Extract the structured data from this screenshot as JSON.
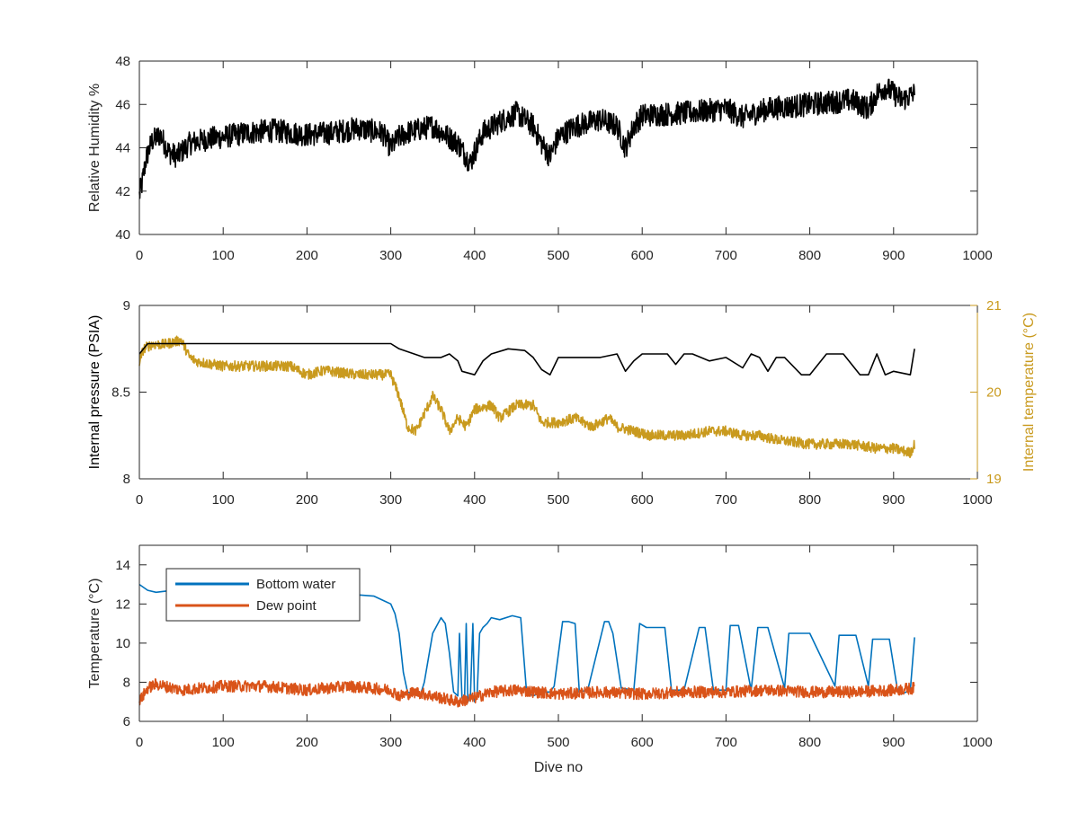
{
  "figure": {
    "background": "#ffffff"
  },
  "chart_data": [
    {
      "type": "line",
      "panel": "top",
      "ylabel": "Relative Humidity %",
      "xlim": [
        0,
        1000
      ],
      "ylim": [
        40,
        48
      ],
      "xticks": [
        0,
        100,
        200,
        300,
        400,
        500,
        600,
        700,
        800,
        900,
        1000
      ],
      "yticks": [
        40,
        42,
        44,
        46,
        48
      ],
      "grid": false,
      "series": [
        {
          "color": "#000000",
          "noise": 0.55,
          "x": [
            0,
            3,
            8,
            15,
            25,
            35,
            45,
            60,
            80,
            100,
            130,
            160,
            200,
            230,
            260,
            290,
            300,
            310,
            320,
            350,
            380,
            395,
            400,
            410,
            430,
            450,
            470,
            480,
            490,
            500,
            520,
            550,
            570,
            580,
            590,
            600,
            650,
            700,
            720,
            750,
            800,
            850,
            870,
            880,
            890,
            900,
            910,
            925
          ],
          "y": [
            41.8,
            42.3,
            43.5,
            44.3,
            44.6,
            43.8,
            43.6,
            44.2,
            44.4,
            44.5,
            44.7,
            44.8,
            44.6,
            44.7,
            44.9,
            44.7,
            44.0,
            44.5,
            44.7,
            45.0,
            44.2,
            43.3,
            43.8,
            44.7,
            45.2,
            45.6,
            45.0,
            44.2,
            43.6,
            44.5,
            45.0,
            45.3,
            45.0,
            44.0,
            45.0,
            45.5,
            45.6,
            45.8,
            45.4,
            45.8,
            46.0,
            46.2,
            45.8,
            46.5,
            46.8,
            46.5,
            46.2,
            46.5
          ]
        }
      ]
    },
    {
      "type": "line",
      "panel": "middle",
      "ylabel": "Internal pressure (PSIA)",
      "y2label": "Internal temperature (°C)",
      "xlim": [
        0,
        1000
      ],
      "ylim": [
        8,
        9
      ],
      "y2lim": [
        19,
        21
      ],
      "xticks": [
        0,
        100,
        200,
        300,
        400,
        500,
        600,
        700,
        800,
        900,
        1000
      ],
      "yticks": [
        8,
        8.5,
        9
      ],
      "yticklabels": [
        "8",
        "8.5",
        "9"
      ],
      "y2ticks": [
        19,
        20,
        21
      ],
      "grid": false,
      "series": [
        {
          "axis": "left",
          "color": "#000000",
          "x": [
            0,
            10,
            300,
            310,
            340,
            360,
            370,
            380,
            385,
            400,
            410,
            420,
            440,
            460,
            470,
            480,
            490,
            500,
            550,
            570,
            580,
            590,
            600,
            630,
            640,
            650,
            660,
            680,
            700,
            720,
            730,
            740,
            750,
            760,
            770,
            790,
            800,
            820,
            840,
            860,
            870,
            880,
            890,
            900,
            920,
            925
          ],
          "y": [
            8.72,
            8.78,
            8.78,
            8.75,
            8.7,
            8.7,
            8.72,
            8.68,
            8.62,
            8.6,
            8.68,
            8.72,
            8.75,
            8.74,
            8.7,
            8.63,
            8.6,
            8.7,
            8.7,
            8.72,
            8.62,
            8.68,
            8.72,
            8.72,
            8.66,
            8.72,
            8.72,
            8.68,
            8.7,
            8.64,
            8.72,
            8.7,
            8.62,
            8.7,
            8.7,
            8.6,
            8.6,
            8.72,
            8.72,
            8.6,
            8.6,
            8.72,
            8.6,
            8.62,
            8.6,
            8.75
          ]
        },
        {
          "axis": "right",
          "color": "#C99A1E",
          "noise": 0.06,
          "x": [
            0,
            5,
            15,
            30,
            50,
            60,
            70,
            100,
            150,
            180,
            200,
            220,
            260,
            300,
            310,
            320,
            330,
            340,
            350,
            360,
            370,
            380,
            390,
            400,
            420,
            430,
            450,
            470,
            480,
            500,
            520,
            540,
            560,
            570,
            590,
            610,
            620,
            650,
            680,
            700,
            720,
            740,
            760,
            800,
            850,
            880,
            900,
            920,
            925
          ],
          "y": [
            20.35,
            20.5,
            20.55,
            20.55,
            20.6,
            20.4,
            20.35,
            20.3,
            20.3,
            20.3,
            20.2,
            20.25,
            20.2,
            20.2,
            19.95,
            19.6,
            19.55,
            19.75,
            19.95,
            19.8,
            19.55,
            19.7,
            19.6,
            19.8,
            19.85,
            19.7,
            19.85,
            19.85,
            19.65,
            19.65,
            19.7,
            19.6,
            19.7,
            19.6,
            19.55,
            19.5,
            19.5,
            19.5,
            19.55,
            19.55,
            19.5,
            19.5,
            19.45,
            19.4,
            19.4,
            19.35,
            19.35,
            19.3,
            19.4
          ]
        }
      ]
    },
    {
      "type": "line",
      "panel": "bottom",
      "ylabel": "Temperature (°C)",
      "xlabel": "Dive no",
      "xlim": [
        0,
        1000
      ],
      "ylim": [
        6,
        15
      ],
      "xticks": [
        0,
        100,
        200,
        300,
        400,
        500,
        600,
        700,
        800,
        900,
        1000
      ],
      "yticks": [
        6,
        8,
        10,
        12,
        14
      ],
      "grid": false,
      "legend": "top-left",
      "series": [
        {
          "name": "Bottom water",
          "color": "#0072BD",
          "x": [
            0,
            10,
            20,
            40,
            60,
            100,
            150,
            200,
            250,
            280,
            290,
            300,
            305,
            310,
            315,
            320,
            335,
            340,
            350,
            360,
            365,
            370,
            375,
            380,
            382,
            385,
            388,
            390,
            392,
            395,
            398,
            400,
            403,
            406,
            410,
            415,
            420,
            430,
            445,
            455,
            462,
            470,
            480,
            490,
            495,
            505,
            512,
            520,
            525,
            535,
            555,
            560,
            565,
            575,
            590,
            597,
            605,
            627,
            635,
            650,
            668,
            675,
            685,
            700,
            705,
            715,
            730,
            738,
            750,
            770,
            775,
            800,
            830,
            835,
            855,
            870,
            875,
            895,
            905,
            910,
            920,
            925
          ],
          "y": [
            13.0,
            12.7,
            12.6,
            12.7,
            12.8,
            12.7,
            12.6,
            12.6,
            12.5,
            12.4,
            12.2,
            12.0,
            11.5,
            10.5,
            8.5,
            7.5,
            7.3,
            8.0,
            10.5,
            11.3,
            11.0,
            9.5,
            7.5,
            7.3,
            10.5,
            7.2,
            7.0,
            11.0,
            7.0,
            7.2,
            11.0,
            7.0,
            7.3,
            10.5,
            10.8,
            11.0,
            11.3,
            11.2,
            11.4,
            11.3,
            7.5,
            7.3,
            7.5,
            7.5,
            7.8,
            11.1,
            11.1,
            11.0,
            7.5,
            7.6,
            11.1,
            11.1,
            10.5,
            7.7,
            7.6,
            11.0,
            10.8,
            10.8,
            7.6,
            7.6,
            10.8,
            10.8,
            7.6,
            7.6,
            10.9,
            10.9,
            7.6,
            10.8,
            10.8,
            7.7,
            10.5,
            10.5,
            7.8,
            10.4,
            10.4,
            7.8,
            10.2,
            10.2,
            7.5,
            7.4,
            7.6,
            10.3
          ]
        },
        {
          "name": "Dew point",
          "color": "#D95319",
          "noise": 0.3,
          "x": [
            0,
            10,
            20,
            50,
            100,
            150,
            200,
            250,
            300,
            310,
            330,
            380,
            400,
            420,
            450,
            500,
            550,
            600,
            650,
            700,
            750,
            800,
            850,
            900,
            925
          ],
          "y": [
            7.0,
            7.7,
            7.9,
            7.6,
            7.8,
            7.8,
            7.6,
            7.8,
            7.6,
            7.3,
            7.5,
            7.0,
            7.2,
            7.5,
            7.6,
            7.4,
            7.5,
            7.4,
            7.5,
            7.5,
            7.6,
            7.5,
            7.5,
            7.6,
            7.7
          ]
        }
      ]
    }
  ]
}
